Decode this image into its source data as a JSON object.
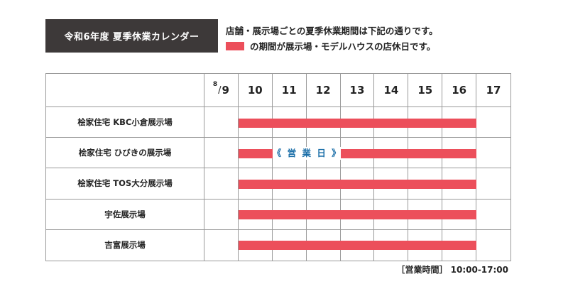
{
  "header": {
    "title": "令和6年度 夏季休業カレンダー",
    "note_line1": "店舗・展示場ごとの夏季休業期間は下記の通りです。",
    "note_line2": "の期間が展示場・モデルハウスの店休日です。"
  },
  "calendar": {
    "month_prefix": "8",
    "dates": [
      "9",
      "10",
      "11",
      "12",
      "13",
      "14",
      "15",
      "16",
      "17"
    ],
    "stores": [
      {
        "name": "桧家住宅 KBC小倉展示場",
        "closed_from": "10",
        "closed_to": "16"
      },
      {
        "name": "桧家住宅 ひびきの展示場",
        "closed_from": "10",
        "closed_to": "16",
        "open_day": "11",
        "open_label": "《 営 業 日 》"
      },
      {
        "name": "桧家住宅 TOS大分展示場",
        "closed_from": "10",
        "closed_to": "16"
      },
      {
        "name": "宇佐展示場",
        "closed_from": "10",
        "closed_to": "16"
      },
      {
        "name": "吉富展示場",
        "closed_from": "10",
        "closed_to": "16"
      }
    ]
  },
  "footer": {
    "hours": "［営業時間］ 10:00-17:00"
  },
  "colors": {
    "title_bg": "#3d3939",
    "closed_bar": "#ec4f5b",
    "open_label": "#1a6ea8",
    "grid_line": "#999999"
  }
}
